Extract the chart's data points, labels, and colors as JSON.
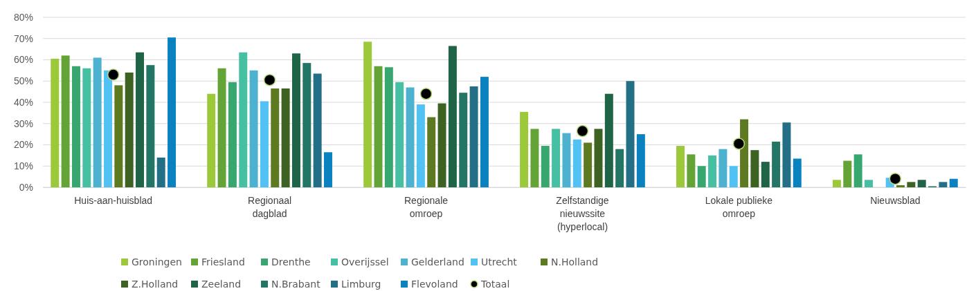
{
  "chart_data": {
    "type": "bar",
    "categories": [
      "Huis-aan-huisblad",
      "Regionaal dagblad",
      "Regionale omroep",
      "Zelfstandige nieuwssite (hyperlocal)",
      "Lokale publieke omroep",
      "Nieuwsblad"
    ],
    "series": [
      {
        "name": "Groningen",
        "color": "#9bc93a",
        "values": [
          60.5,
          44,
          68.5,
          35.5,
          19.5,
          3.5
        ]
      },
      {
        "name": "Friesland",
        "color": "#64a437",
        "values": [
          62,
          56,
          57,
          27.5,
          15.5,
          12.5
        ]
      },
      {
        "name": "Drenthe",
        "color": "#37a66f",
        "values": [
          57,
          49.5,
          56.5,
          19.5,
          10,
          15.5
        ]
      },
      {
        "name": "Overijssel",
        "color": "#45c0a3",
        "values": [
          56,
          63.5,
          49.5,
          27.5,
          15,
          3.5
        ]
      },
      {
        "name": "Gelderland",
        "color": "#4db1d0",
        "values": [
          61,
          55,
          47,
          25.5,
          18,
          0
        ]
      },
      {
        "name": "Utrecht",
        "color": "#52c2f5",
        "values": [
          55,
          40.5,
          39,
          22.5,
          10,
          4.5
        ]
      },
      {
        "name": "N.Holland",
        "color": "#5d7a21",
        "values": [
          48,
          46.5,
          33,
          21,
          32,
          1
        ]
      },
      {
        "name": "Z.Holland",
        "color": "#3d6222",
        "values": [
          54,
          46.5,
          39.5,
          27.5,
          17.5,
          2.5
        ]
      },
      {
        "name": "Zeeland",
        "color": "#206447",
        "values": [
          63.5,
          63,
          66.5,
          44,
          12,
          3.5
        ]
      },
      {
        "name": "N.Brabant",
        "color": "#237565",
        "values": [
          57.5,
          58.5,
          44.5,
          18,
          21.5,
          0.5
        ]
      },
      {
        "name": "Limburg",
        "color": "#236f85",
        "values": [
          14,
          53.5,
          47.5,
          50,
          30.5,
          2.5
        ]
      },
      {
        "name": "Flevoland",
        "color": "#0a82bf",
        "values": [
          70.5,
          16.5,
          52,
          25,
          13.5,
          4
        ]
      },
      {
        "name": "Totaal",
        "type": "scatter",
        "color": "#000000",
        "values": [
          53,
          50.5,
          44,
          26.5,
          20.5,
          4
        ]
      }
    ],
    "ylim": [
      0,
      80
    ],
    "yticks": [
      {
        "value": 0,
        "label": "0%"
      },
      {
        "value": 10,
        "label": "10%"
      },
      {
        "value": 20,
        "label": "20%"
      },
      {
        "value": 30,
        "label": "30%"
      },
      {
        "value": 40,
        "label": "40%"
      },
      {
        "value": 50,
        "label": "50%"
      },
      {
        "value": 60,
        "label": "60%"
      },
      {
        "value": 70,
        "label": "70%"
      },
      {
        "value": 80,
        "label": "80%"
      }
    ],
    "grid": "y",
    "legend": "bottom",
    "marker": "circle"
  }
}
